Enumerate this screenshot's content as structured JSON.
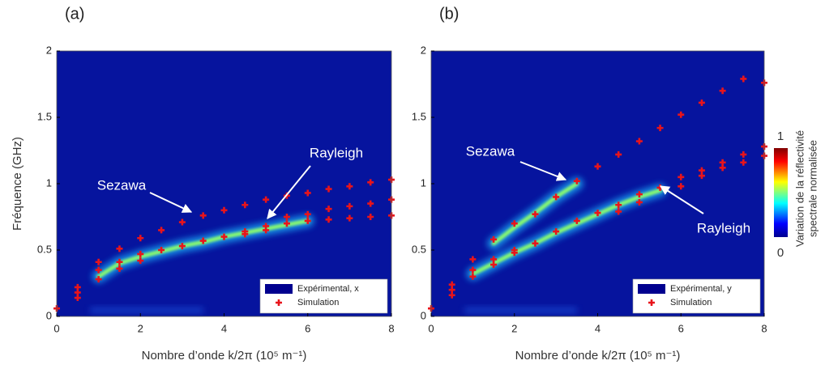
{
  "chart_data": [
    {
      "type": "scatter",
      "title": "(a)",
      "xlabel": "Nombre d’onde k/2π (10⁵ m⁻¹)",
      "ylabel": "Fréquence (GHz)",
      "xlim": [
        0,
        8
      ],
      "ylim": [
        0,
        2
      ],
      "xticks": [
        0,
        2,
        4,
        6,
        8
      ],
      "yticks": [
        0,
        0.5,
        1,
        1.5,
        2
      ],
      "legend": "lower right",
      "annotations": [
        "Sezawa",
        "Rayleigh"
      ],
      "series": [
        {
          "name": "Expérimental, x",
          "color": "#00008f",
          "style": "ridge",
          "x": [
            1,
            1.5,
            2,
            2.5,
            3,
            3.5,
            4,
            4.5,
            5,
            5.5,
            6
          ],
          "values": [
            0.3,
            0.4,
            0.45,
            0.49,
            0.53,
            0.56,
            0.6,
            0.63,
            0.66,
            0.69,
            0.72
          ]
        },
        {
          "name": "Simulation",
          "color": "#e8141b",
          "style": "marker",
          "x": [
            0,
            0.5,
            0.5,
            0.5,
            1,
            1,
            1,
            1.5,
            1.5,
            1.5,
            2,
            2,
            2,
            2.5,
            2.5,
            3,
            3,
            3.5,
            3.5,
            4,
            4,
            4.5,
            4.5,
            4.5,
            5,
            5,
            5,
            5.5,
            5.5,
            5.5,
            6,
            6,
            6,
            6.5,
            6.5,
            6.5,
            7,
            7,
            7,
            7.5,
            7.5,
            7.5,
            8,
            8,
            8
          ],
          "values": [
            0.06,
            0.22,
            0.18,
            0.14,
            0.41,
            0.35,
            0.28,
            0.51,
            0.41,
            0.36,
            0.59,
            0.47,
            0.42,
            0.65,
            0.5,
            0.71,
            0.53,
            0.76,
            0.57,
            0.8,
            0.6,
            0.84,
            0.64,
            0.62,
            0.88,
            0.68,
            0.65,
            0.91,
            0.75,
            0.7,
            0.93,
            0.77,
            0.72,
            0.96,
            0.81,
            0.73,
            0.98,
            0.83,
            0.74,
            1.01,
            0.85,
            0.75,
            1.03,
            0.88,
            0.76
          ]
        }
      ]
    },
    {
      "type": "scatter",
      "title": "(b)",
      "xlabel": "Nombre d’onde k/2π (10⁵ m⁻¹)",
      "xlim": [
        0,
        8
      ],
      "ylim": [
        0,
        2
      ],
      "xticks": [
        0,
        2,
        4,
        6,
        8
      ],
      "yticks": [
        0,
        0.5,
        1,
        1.5,
        2
      ],
      "legend": "lower right",
      "annotations": [
        "Sezawa",
        "Rayleigh"
      ],
      "colorbar": {
        "label": [
          "Variation de la réflectivité",
          "spectrale normalisée"
        ],
        "lim": [
          0,
          1
        ],
        "ticks": [
          0,
          1
        ]
      },
      "series": [
        {
          "name": "Expérimental, y",
          "color": "#00008f",
          "style": "ridge",
          "x": [
            1,
            1.5,
            2,
            2.5,
            3,
            3.5,
            4,
            4.5,
            5,
            5.5,
            5.5,
            1.5,
            2,
            2.5,
            3,
            3.5
          ],
          "values": [
            0.32,
            0.4,
            0.48,
            0.55,
            0.63,
            0.7,
            0.77,
            0.84,
            0.9,
            0.95,
            null,
            0.55,
            0.67,
            0.78,
            0.9,
            1.0
          ]
        },
        {
          "name": "Simulation",
          "color": "#e8141b",
          "style": "marker",
          "x": [
            0,
            0.5,
            0.5,
            0.5,
            1,
            1,
            1,
            1.5,
            1.5,
            1.5,
            2,
            2,
            2,
            2.5,
            2.5,
            3,
            3,
            3.5,
            3.5,
            4,
            4,
            4.5,
            4.5,
            4.5,
            5,
            5,
            5,
            5.5,
            5.5,
            6,
            6,
            6,
            6.5,
            6.5,
            6.5,
            7,
            7,
            7,
            7.5,
            7.5,
            7.5,
            8,
            8,
            8
          ],
          "values": [
            0.06,
            0.24,
            0.2,
            0.16,
            0.43,
            0.35,
            0.3,
            0.58,
            0.43,
            0.39,
            0.7,
            0.5,
            0.48,
            0.77,
            0.55,
            0.9,
            0.64,
            1.02,
            0.72,
            1.13,
            0.78,
            1.22,
            0.84,
            0.79,
            1.32,
            0.92,
            0.86,
            1.42,
            0.97,
            1.52,
            1.05,
            0.98,
            1.61,
            1.1,
            1.06,
            1.7,
            1.16,
            1.12,
            1.79,
            1.22,
            1.16,
            1.76,
            1.28,
            1.21
          ]
        }
      ]
    }
  ]
}
